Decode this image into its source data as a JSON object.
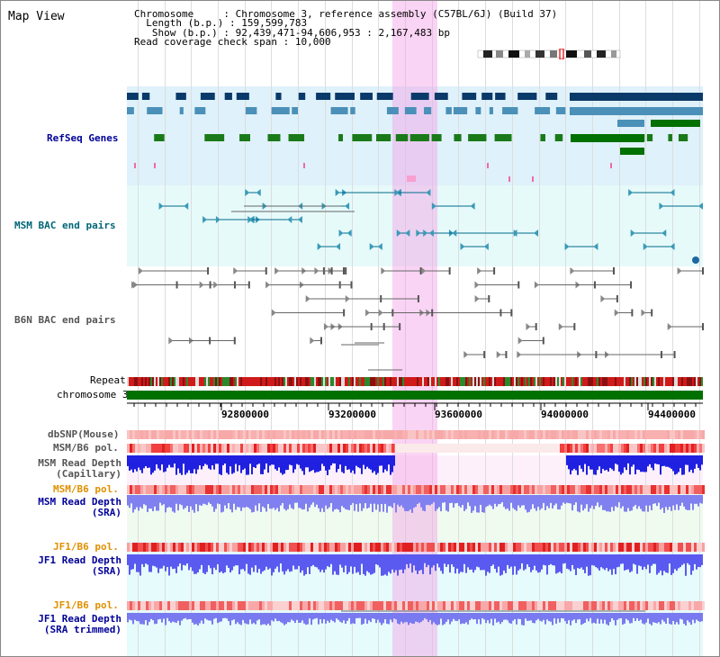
{
  "title": "Map View",
  "info": {
    "chromosome_label": "Chromosome",
    "chromosome_value": "Chromosome 3, reference assembly (C57BL/6J) (Build 37)",
    "length_label": "Length (b.p.)",
    "length_value": "159,599,783",
    "show_label": "Show (b.p.)",
    "show_value": "92,439,471-94,606,953 : 2,167,483 bp",
    "coverage_label": "Read coverage check span",
    "coverage_value": "10,000"
  },
  "tracks": {
    "refseq": "RefSeq Genes",
    "msm_bac": "MSM BAC end pairs",
    "b6n_bac": "B6N BAC end pairs",
    "repeat": "Repeat",
    "chromosome": "chromosome 3",
    "dbsnp": "dbSNP(Mouse)",
    "msm_b6_pol_1": "MSM/B6 pol.",
    "msm_depth_cap_1": "MSM Read Depth",
    "msm_depth_cap_2": "(Capillary)",
    "msm_b6_pol_2": "MSM/B6 pol.",
    "msm_depth_sra_1": "MSM Read Depth",
    "msm_depth_sra_2": "(SRA)",
    "jf1_pol_1": "JF1/B6 pol.",
    "jf1_depth_sra_1": "JF1 Read Depth",
    "jf1_depth_sra_2": "(SRA)",
    "jf1_pol_2": "JF1/B6 pol.",
    "jf1_depth_trim_1": "JF1 Read Depth",
    "jf1_depth_trim_2": "(SRA trimmed)"
  },
  "axis": {
    "ticks": [
      "92800000",
      "93200000",
      "93600000",
      "94000000",
      "94400000"
    ]
  },
  "colors": {
    "refseq_bg": "#dff1fa",
    "msm_bac_bg": "#e6fafa",
    "b6n_bac_bg": "#ffffff",
    "highlight": "#f5a0e6",
    "chromosome_bar": "#007000",
    "label_blue": "#000099",
    "label_teal": "#006677",
    "label_orange": "#e09000",
    "label_gray": "#555555",
    "depth_dark": "#2020e0",
    "depth_light": "#7070f0"
  }
}
